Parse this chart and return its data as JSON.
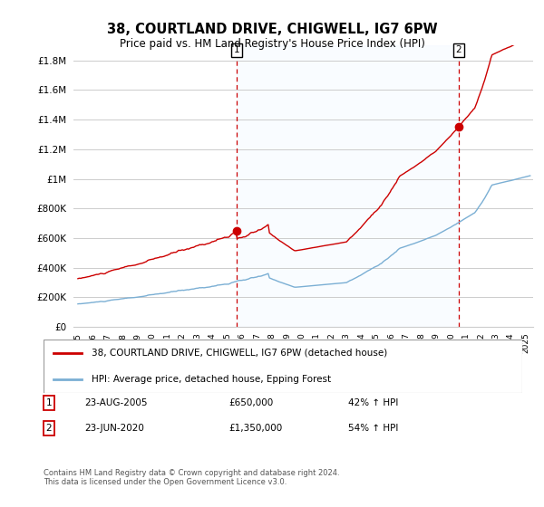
{
  "title": "38, COURTLAND DRIVE, CHIGWELL, IG7 6PW",
  "subtitle": "Price paid vs. HM Land Registry's House Price Index (HPI)",
  "legend_line1": "38, COURTLAND DRIVE, CHIGWELL, IG7 6PW (detached house)",
  "legend_line2": "HPI: Average price, detached house, Epping Forest",
  "annotation1_label": "1",
  "annotation1_date": "23-AUG-2005",
  "annotation1_price": "£650,000",
  "annotation1_hpi": "42% ↑ HPI",
  "annotation1_year": 2005.65,
  "annotation1_value": 650000,
  "annotation2_label": "2",
  "annotation2_date": "23-JUN-2020",
  "annotation2_price": "£1,350,000",
  "annotation2_hpi": "54% ↑ HPI",
  "annotation2_year": 2020.5,
  "annotation2_value": 1350000,
  "footnote": "Contains HM Land Registry data © Crown copyright and database right 2024.\nThis data is licensed under the Open Government Licence v3.0.",
  "red_color": "#cc0000",
  "blue_color": "#7bafd4",
  "shade_color": "#ddeeff",
  "background_color": "#ffffff",
  "grid_color": "#cccccc",
  "ylim": [
    0,
    1900000
  ],
  "yticks": [
    0,
    200000,
    400000,
    600000,
    800000,
    1000000,
    1200000,
    1400000,
    1600000,
    1800000
  ],
  "ytick_labels": [
    "£0",
    "£200K",
    "£400K",
    "£600K",
    "£800K",
    "£1M",
    "£1.2M",
    "£1.4M",
    "£1.6M",
    "£1.8M"
  ],
  "xlim_start": 1994.7,
  "xlim_end": 2025.5,
  "xtick_years": [
    1995,
    1996,
    1997,
    1998,
    1999,
    2000,
    2001,
    2002,
    2003,
    2004,
    2005,
    2006,
    2007,
    2008,
    2009,
    2010,
    2011,
    2012,
    2013,
    2014,
    2015,
    2016,
    2017,
    2018,
    2019,
    2020,
    2021,
    2022,
    2023,
    2024,
    2025
  ]
}
